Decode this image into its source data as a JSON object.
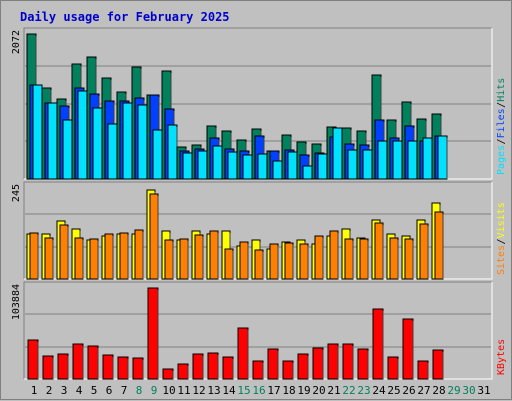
{
  "title": "Daily usage for February 2025",
  "colors": {
    "hits": "#00805c",
    "files": "#0040ff",
    "pages": "#00e0ff",
    "visits": "#ffff00",
    "sites": "#ff8000",
    "kbytes": "#ff0000",
    "weekday": "#000000",
    "weekend": "#00805c",
    "panel": "#c0c0c0"
  },
  "chart_data": [
    {
      "type": "bar",
      "panel": "hits-files-pages",
      "ymax_label": "2072",
      "ylim": [
        0,
        2072
      ],
      "legend": [
        "Pages",
        "Files",
        "Hits"
      ],
      "categories": [
        "1",
        "2",
        "3",
        "4",
        "5",
        "6",
        "7",
        "8",
        "9",
        "10",
        "11",
        "12",
        "13",
        "14",
        "15",
        "16",
        "17",
        "18",
        "19",
        "20",
        "21",
        "22",
        "23",
        "24",
        "25",
        "26",
        "27",
        "28"
      ],
      "series": [
        {
          "name": "Hits",
          "values": [
            2072,
            1300,
            1150,
            1650,
            1750,
            1450,
            1250,
            1600,
            1200,
            1550,
            460,
            490,
            760,
            680,
            560,
            720,
            400,
            630,
            530,
            500,
            740,
            730,
            680,
            1480,
            840,
            1100,
            860,
            930
          ]
        },
        {
          "name": "Files",
          "values": [
            1340,
            1080,
            1050,
            1300,
            1220,
            1120,
            1120,
            1160,
            1200,
            1000,
            400,
            430,
            580,
            430,
            400,
            620,
            400,
            420,
            340,
            370,
            600,
            500,
            490,
            850,
            590,
            760,
            550,
            610
          ]
        },
        {
          "name": "Pages",
          "values": [
            1340,
            1080,
            850,
            1260,
            1020,
            790,
            1080,
            1060,
            700,
            770,
            370,
            400,
            470,
            380,
            340,
            360,
            260,
            390,
            180,
            360,
            730,
            410,
            420,
            550,
            540,
            550,
            580,
            620
          ]
        }
      ]
    },
    {
      "type": "bar",
      "panel": "visits-sites",
      "ymax_label": "245",
      "ylim": [
        0,
        245
      ],
      "legend": [
        "Sites",
        "Visits"
      ],
      "categories": [
        "1",
        "2",
        "3",
        "4",
        "5",
        "6",
        "7",
        "8",
        "9",
        "10",
        "11",
        "12",
        "13",
        "14",
        "15",
        "16",
        "17",
        "18",
        "19",
        "20",
        "21",
        "22",
        "23",
        "24",
        "25",
        "26",
        "27",
        "28"
      ],
      "series": [
        {
          "name": "Visits",
          "values": [
            120,
            120,
            155,
            135,
            105,
            115,
            120,
            120,
            240,
            130,
            105,
            130,
            120,
            130,
            90,
            105,
            80,
            100,
            105,
            95,
            115,
            135,
            110,
            160,
            120,
            115,
            160,
            205
          ]
        },
        {
          "name": "Sites",
          "values": [
            125,
            110,
            145,
            110,
            108,
            120,
            123,
            133,
            230,
            105,
            108,
            118,
            130,
            80,
            100,
            78,
            95,
            97,
            93,
            117,
            130,
            108,
            107,
            150,
            110,
            108,
            148,
            180
          ]
        }
      ]
    },
    {
      "type": "bar",
      "panel": "kbytes",
      "ymax_label": "103884",
      "ylim": [
        0,
        103884
      ],
      "legend": [
        "KBytes"
      ],
      "categories": [
        "1",
        "2",
        "3",
        "4",
        "5",
        "6",
        "7",
        "8",
        "9",
        "10",
        "11",
        "12",
        "13",
        "14",
        "15",
        "16",
        "17",
        "18",
        "19",
        "20",
        "21",
        "22",
        "23",
        "24",
        "25",
        "26",
        "27",
        "28"
      ],
      "series": [
        {
          "name": "KBytes",
          "values": [
            44000,
            26000,
            28000,
            40000,
            38000,
            27000,
            25000,
            24000,
            103884,
            11000,
            17000,
            28000,
            30000,
            25000,
            58000,
            21000,
            34000,
            21000,
            28000,
            35000,
            40000,
            40000,
            34000,
            80000,
            25000,
            68000,
            21000,
            33000
          ]
        }
      ]
    }
  ],
  "days": [
    {
      "label": "1",
      "weekend": false
    },
    {
      "label": "2",
      "weekend": false
    },
    {
      "label": "3",
      "weekend": false
    },
    {
      "label": "4",
      "weekend": false
    },
    {
      "label": "5",
      "weekend": false
    },
    {
      "label": "6",
      "weekend": false
    },
    {
      "label": "7",
      "weekend": false
    },
    {
      "label": "8",
      "weekend": true
    },
    {
      "label": "9",
      "weekend": true
    },
    {
      "label": "10",
      "weekend": false
    },
    {
      "label": "11",
      "weekend": false
    },
    {
      "label": "12",
      "weekend": false
    },
    {
      "label": "13",
      "weekend": false
    },
    {
      "label": "14",
      "weekend": false
    },
    {
      "label": "15",
      "weekend": true
    },
    {
      "label": "16",
      "weekend": true
    },
    {
      "label": "17",
      "weekend": false
    },
    {
      "label": "18",
      "weekend": false
    },
    {
      "label": "19",
      "weekend": false
    },
    {
      "label": "20",
      "weekend": false
    },
    {
      "label": "21",
      "weekend": false
    },
    {
      "label": "22",
      "weekend": true
    },
    {
      "label": "23",
      "weekend": true
    },
    {
      "label": "24",
      "weekend": false
    },
    {
      "label": "25",
      "weekend": false
    },
    {
      "label": "26",
      "weekend": false
    },
    {
      "label": "27",
      "weekend": false
    },
    {
      "label": "28",
      "weekend": false
    },
    {
      "label": "29",
      "weekend": true
    },
    {
      "label": "30",
      "weekend": true
    },
    {
      "label": "31",
      "weekend": false
    }
  ]
}
